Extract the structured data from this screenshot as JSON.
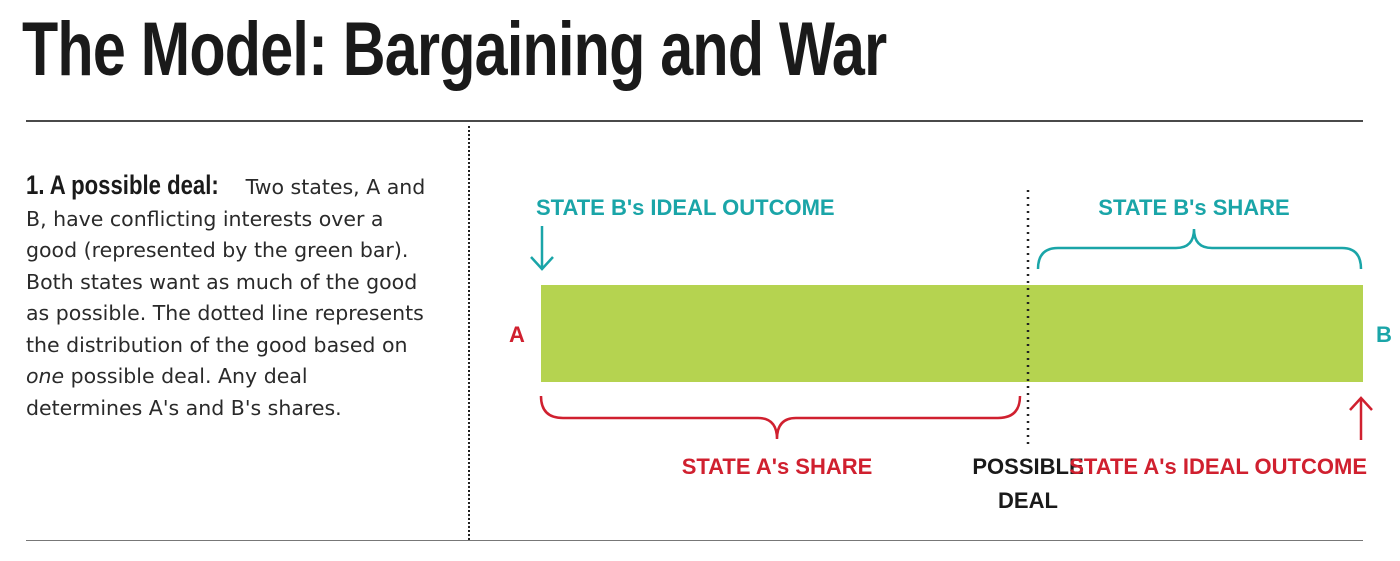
{
  "title": "The Model: Bargaining and War",
  "description": {
    "lead": "1. A possible deal:",
    "part1": " Two states, A and B, have conflicting interests over a good (represented by the green bar). Both states want as much of the good as possible. The dotted line represents the distribution of the good based on ",
    "emphasis": "one",
    "part2": " possible deal.  Any deal determines A's and B's shares."
  },
  "diagram": {
    "state_b_ideal": "STATE B's IDEAL OUTCOME",
    "state_b_share": "STATE B's SHARE",
    "label_a": "A",
    "label_b": "B",
    "state_a_share": "STATE A's SHARE",
    "possible_deal_line1": "POSSIBLE",
    "possible_deal_line2": "DEAL",
    "state_a_ideal": "STATE A's IDEAL OUTCOME",
    "colors": {
      "good_bar": "#b5d350",
      "state_a": "#d0202f",
      "state_b": "#1aa5a8"
    }
  }
}
